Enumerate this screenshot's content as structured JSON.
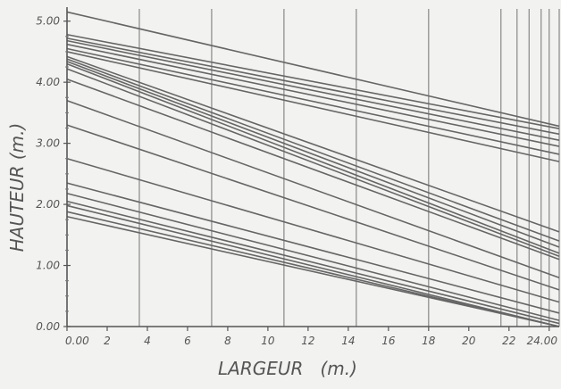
{
  "chart_data": {
    "type": "line",
    "xlabel": "LARGEUR   (m.)",
    "ylabel": "HAUTEUR (m.)",
    "xlim": [
      0,
      24.5
    ],
    "ylim": [
      0,
      5.2
    ],
    "x_ticks": [
      "0.00",
      "2",
      "4",
      "6",
      "8",
      "10",
      "12",
      "14",
      "16",
      "18",
      "20",
      "22",
      "24.00"
    ],
    "x_tick_values": [
      0,
      2,
      4,
      6,
      8,
      10,
      12,
      14,
      16,
      18,
      20,
      22,
      24
    ],
    "y_ticks": [
      "0.00",
      "1.00",
      "2.00",
      "3.00",
      "4.00",
      "5.00"
    ],
    "y_tick_values": [
      0,
      1,
      2,
      3,
      4,
      5
    ],
    "vertical_rules_x": [
      0,
      3.6,
      7.2,
      10.8,
      14.4,
      18.0,
      21.6,
      22.4,
      23.0,
      23.6,
      24.0,
      24.5
    ],
    "grid": false,
    "line_color": "#666666",
    "series": [
      {
        "values": [
          [
            0,
            5.15
          ],
          [
            24.5,
            3.28
          ]
        ]
      },
      {
        "values": [
          [
            0,
            4.78
          ],
          [
            24.5,
            3.24
          ]
        ]
      },
      {
        "values": [
          [
            0,
            4.72
          ],
          [
            24.5,
            3.15
          ]
        ]
      },
      {
        "values": [
          [
            0,
            4.68
          ],
          [
            24.5,
            3.05
          ]
        ]
      },
      {
        "values": [
          [
            0,
            4.62
          ],
          [
            24.5,
            2.95
          ]
        ]
      },
      {
        "values": [
          [
            0,
            4.55
          ],
          [
            24.5,
            2.82
          ]
        ]
      },
      {
        "values": [
          [
            0,
            4.5
          ],
          [
            24.5,
            2.7
          ]
        ]
      },
      {
        "values": [
          [
            0,
            4.42
          ],
          [
            24.5,
            1.55
          ]
        ]
      },
      {
        "values": [
          [
            0,
            4.38
          ],
          [
            24.5,
            1.4
          ]
        ]
      },
      {
        "values": [
          [
            0,
            4.34
          ],
          [
            24.5,
            1.3
          ]
        ]
      },
      {
        "values": [
          [
            0,
            4.3
          ],
          [
            24.5,
            1.2
          ]
        ]
      },
      {
        "values": [
          [
            0,
            4.22
          ],
          [
            24.5,
            1.15
          ]
        ]
      },
      {
        "values": [
          [
            0,
            4.05
          ],
          [
            24.5,
            1.1
          ]
        ]
      },
      {
        "values": [
          [
            0,
            3.7
          ],
          [
            24.5,
            0.8
          ]
        ]
      },
      {
        "values": [
          [
            0,
            3.3
          ],
          [
            24.5,
            0.6
          ]
        ]
      },
      {
        "values": [
          [
            0,
            2.75
          ],
          [
            24.5,
            0.4
          ]
        ]
      },
      {
        "values": [
          [
            0,
            2.35
          ],
          [
            24.5,
            0.22
          ]
        ]
      },
      {
        "values": [
          [
            0,
            2.18
          ],
          [
            24.5,
            0.1
          ]
        ]
      },
      {
        "values": [
          [
            0,
            2.05
          ],
          [
            24.5,
            0.05
          ]
        ]
      },
      {
        "values": [
          [
            0,
            1.98
          ],
          [
            24.5,
            0.0
          ]
        ]
      },
      {
        "values": [
          [
            0,
            1.88
          ],
          [
            24.5,
            0.0
          ]
        ]
      },
      {
        "values": [
          [
            0,
            1.8
          ],
          [
            24.5,
            0.0
          ]
        ]
      }
    ]
  }
}
